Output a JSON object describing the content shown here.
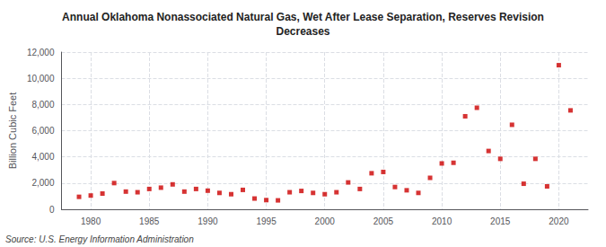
{
  "chart_data": {
    "type": "scatter",
    "title": "Annual Oklahoma Nonassociated Natural Gas, Wet After Lease Separation, Reserves Revision\nDecreases",
    "ylabel": "Billion Cubic Feet",
    "source": "Source: U.S. Energy Information Administration",
    "color": "#cc0000",
    "marker": "square",
    "grid": true,
    "x": [
      1979,
      1980,
      1981,
      1982,
      1983,
      1984,
      1985,
      1986,
      1987,
      1988,
      1989,
      1990,
      1991,
      1992,
      1993,
      1994,
      1995,
      1996,
      1997,
      1998,
      1999,
      2000,
      2001,
      2002,
      2003,
      2004,
      2005,
      2006,
      2007,
      2008,
      2009,
      2010,
      2011,
      2012,
      2013,
      2014,
      2015,
      2016,
      2017,
      2018,
      2019,
      2020,
      2021
    ],
    "values": [
      950,
      1050,
      1200,
      2000,
      1350,
      1300,
      1550,
      1650,
      1900,
      1350,
      1550,
      1420,
      1250,
      1150,
      1480,
      820,
      700,
      680,
      1300,
      1400,
      1250,
      1150,
      1300,
      2050,
      1550,
      2750,
      2850,
      1700,
      1450,
      1250,
      2400,
      3500,
      3550,
      7100,
      7750,
      4450,
      3850,
      6450,
      1950,
      3850,
      1750,
      11000,
      7550
    ],
    "xlim": [
      1977.5,
      2022.5
    ],
    "xticks": [
      1980,
      1985,
      1990,
      1995,
      2000,
      2005,
      2010,
      2015,
      2020
    ],
    "ylim": [
      0,
      12000
    ],
    "yticks": [
      0,
      {
        "value": 2000,
        "label": "2,000"
      },
      {
        "value": 4000,
        "label": "4,000"
      },
      {
        "value": 6000,
        "label": "6,000"
      },
      {
        "value": 8000,
        "label": "8,000"
      },
      {
        "value": 10000,
        "label": "10,000"
      },
      {
        "value": 12000,
        "label": "12,000"
      }
    ]
  }
}
